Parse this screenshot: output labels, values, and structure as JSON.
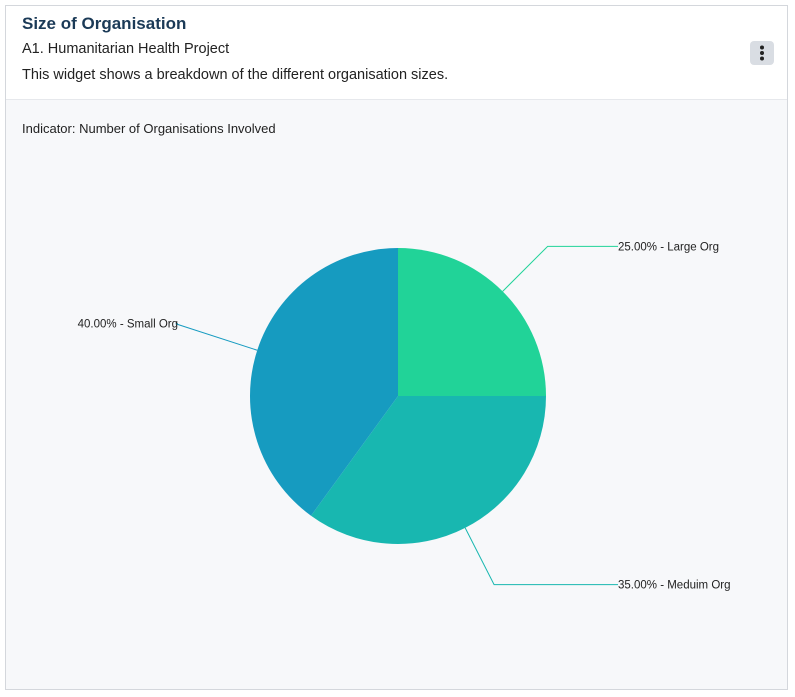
{
  "widget": {
    "title": "Size of Organisation",
    "subtitle": "A1. Humanitarian Health Project",
    "description": "This widget shows a breakdown of the different organisation sizes.",
    "menu_icon": "kebab-menu-icon"
  },
  "indicator": {
    "label": "Indicator: Number of Organisations Involved"
  },
  "chart_data": {
    "type": "pie",
    "start_angle_deg": 0,
    "direction": "clockwise",
    "slices": [
      {
        "label": "Large Org",
        "value": 25.0,
        "display": "25.00% - Large Org",
        "color": "#21d398"
      },
      {
        "label": "Meduim Org",
        "value": 35.0,
        "display": "35.00% - Meduim Org",
        "color": "#18b7b0"
      },
      {
        "label": "Small Org",
        "value": 40.0,
        "display": "40.00% - Small Org",
        "color": "#169bc0"
      }
    ]
  }
}
